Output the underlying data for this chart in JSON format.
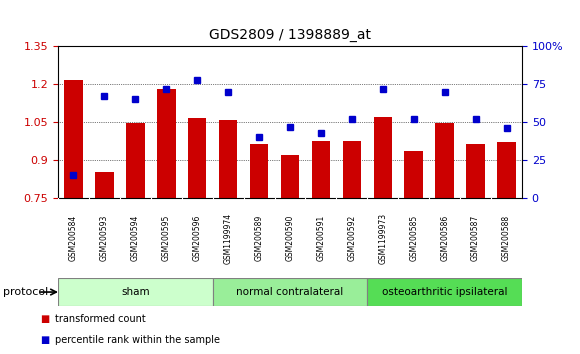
{
  "title": "GDS2809 / 1398889_at",
  "samples": [
    "GSM200584",
    "GSM200593",
    "GSM200594",
    "GSM200595",
    "GSM200596",
    "GSM1199974",
    "GSM200589",
    "GSM200590",
    "GSM200591",
    "GSM200592",
    "GSM1199973",
    "GSM200585",
    "GSM200586",
    "GSM200587",
    "GSM200588"
  ],
  "transformed_count": [
    1.215,
    0.855,
    1.045,
    1.18,
    1.065,
    1.06,
    0.965,
    0.92,
    0.975,
    0.975,
    1.07,
    0.935,
    1.045,
    0.965,
    0.97
  ],
  "percentile_rank": [
    15,
    67,
    65,
    72,
    78,
    70,
    40,
    47,
    43,
    52,
    72,
    52,
    70,
    52,
    46
  ],
  "bar_color": "#cc0000",
  "dot_color": "#0000cc",
  "ylim_left": [
    0.75,
    1.35
  ],
  "ylim_right": [
    0,
    100
  ],
  "yticks_left": [
    0.75,
    0.9,
    1.05,
    1.2,
    1.35
  ],
  "ytick_labels_left": [
    "0.75",
    "0.9",
    "1.05",
    "1.2",
    "1.35"
  ],
  "yticks_right": [
    0,
    25,
    50,
    75,
    100
  ],
  "ytick_labels_right": [
    "0",
    "25",
    "50",
    "75",
    "100%"
  ],
  "groups": [
    {
      "label": "sham",
      "start": 0,
      "end": 5,
      "color": "#ccffcc"
    },
    {
      "label": "normal contralateral",
      "start": 5,
      "end": 10,
      "color": "#99ee99"
    },
    {
      "label": "osteoarthritic ipsilateral",
      "start": 10,
      "end": 15,
      "color": "#55dd55"
    }
  ],
  "protocol_label": "protocol",
  "legend_bar_label": "transformed count",
  "legend_dot_label": "percentile rank within the sample",
  "background_color": "#ffffff",
  "plot_bg_color": "#ffffff",
  "tick_label_color_left": "#cc0000",
  "tick_label_color_right": "#0000cc"
}
